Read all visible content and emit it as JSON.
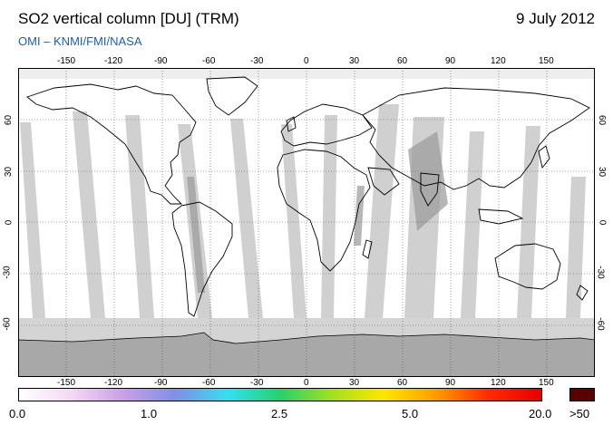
{
  "header": {
    "title": "SO2 vertical column [DU] (TRM)",
    "subtitle": "OMI  –  KNMI/FMI/NASA",
    "date": "9 July 2012"
  },
  "map": {
    "lon_ticks": [
      "-150",
      "-120",
      "-90",
      "-60",
      "-30",
      "0",
      "30",
      "60",
      "90",
      "120",
      "150"
    ],
    "lat_ticks_left": [
      "60",
      "30",
      "0",
      "-30",
      "-60"
    ],
    "lat_ticks_right": [
      "60",
      "30",
      "0",
      "-30",
      "-60"
    ],
    "lon_range": [
      -180,
      180
    ],
    "lat_range": [
      -90,
      90
    ],
    "colors": {
      "land_outline": "#000000",
      "swath_gap": "#c8c8c8",
      "missing_high": "#d4d4d4",
      "antarctica": "#a8a8a8"
    }
  },
  "colorbar": {
    "labels": [
      "0.0",
      "1.0",
      "2.5",
      "5.0",
      "20.0",
      ">50"
    ],
    "gradient": [
      "#ffffff",
      "#f4d9f4",
      "#c9a0e6",
      "#7f8fe8",
      "#33e0f0",
      "#26d26a",
      "#a5e01f",
      "#ffe600",
      "#ff9a00",
      "#ff2a00",
      "#e60000"
    ],
    "over_color": "#5a0000"
  }
}
